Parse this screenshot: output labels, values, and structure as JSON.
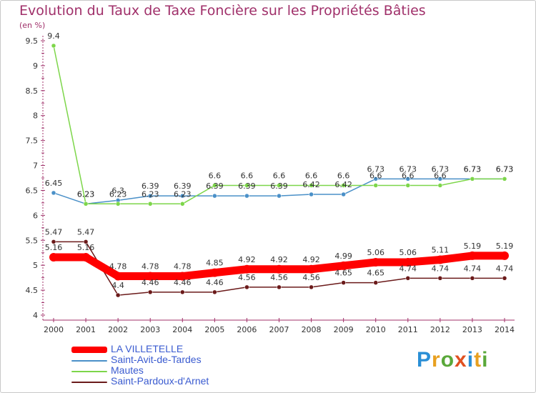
{
  "title": "Evolution du Taux de Taxe Foncière sur les Propriétés Bâties",
  "subtitle": "(en %)",
  "logo_text": "Proxiti",
  "chart_data": {
    "type": "line",
    "title": "Evolution du Taux de Taxe Foncière sur les Propriétés Bâties",
    "ylabel": "(en %)",
    "xlabel": "",
    "categories": [
      "2000",
      "2001",
      "2002",
      "2003",
      "2004",
      "2005",
      "2006",
      "2007",
      "2008",
      "2009",
      "2010",
      "2011",
      "2012",
      "2013",
      "2014"
    ],
    "ylim": [
      4,
      9.5
    ],
    "yticks": [
      "4",
      "4.5",
      "5",
      "5.5",
      "6",
      "6.5",
      "7",
      "7.5",
      "8",
      "8.5",
      "9",
      "9.5"
    ],
    "grid": false,
    "legend_position": "bottom-left",
    "series": [
      {
        "name": "LA VILLETELLE",
        "color": "#ff0000",
        "values": [
          5.16,
          5.16,
          4.78,
          4.78,
          4.78,
          4.85,
          4.92,
          4.92,
          4.92,
          4.99,
          5.06,
          5.06,
          5.11,
          5.19,
          5.19
        ],
        "labels": [
          "5.16",
          "5.16",
          "4.78",
          "4.78",
          "4.78",
          "4.85",
          "4.92",
          "4.92",
          "4.92",
          "4.99",
          "5.06",
          "5.06",
          "5.11",
          "5.19",
          "5.19"
        ]
      },
      {
        "name": "Saint-Avit-de-Tardes",
        "color": "#4a90c8",
        "values": [
          6.45,
          6.23,
          6.3,
          6.39,
          6.39,
          6.39,
          6.39,
          6.39,
          6.42,
          6.42,
          6.73,
          6.73,
          6.73,
          6.73,
          6.73
        ],
        "labels": [
          "6.45",
          "6.23",
          "6.3",
          "6.39",
          "6.39",
          "6.39",
          "6.39",
          "6.39",
          "6.42",
          "6.42",
          "6.73",
          "6.73",
          "6.73",
          "6.73",
          "6.73"
        ]
      },
      {
        "name": "Mautes",
        "color": "#7dd64a",
        "values": [
          9.4,
          6.23,
          6.23,
          6.23,
          6.23,
          6.6,
          6.6,
          6.6,
          6.6,
          6.6,
          6.6,
          6.6,
          6.6,
          6.73,
          6.73
        ],
        "labels": [
          "9.4",
          "6.23",
          "6.23",
          "6.23",
          "6.23",
          "6.6",
          "6.6",
          "6.6",
          "6.6",
          "6.6",
          "6.6",
          "6.6",
          "6.6",
          "6.73",
          "6.73"
        ]
      },
      {
        "name": "Saint-Pardoux-d'Arnet",
        "color": "#6b1a1a",
        "values": [
          5.47,
          5.47,
          4.4,
          4.46,
          4.46,
          4.46,
          4.56,
          4.56,
          4.56,
          4.65,
          4.65,
          4.74,
          4.74,
          4.74,
          4.74
        ],
        "labels": [
          "5.47",
          "5.47",
          "4.4",
          "4.46",
          "4.46",
          "4.46",
          "4.56",
          "4.56",
          "4.56",
          "4.65",
          "4.65",
          "4.74",
          "4.74",
          "4.74",
          "4.74"
        ]
      }
    ]
  }
}
